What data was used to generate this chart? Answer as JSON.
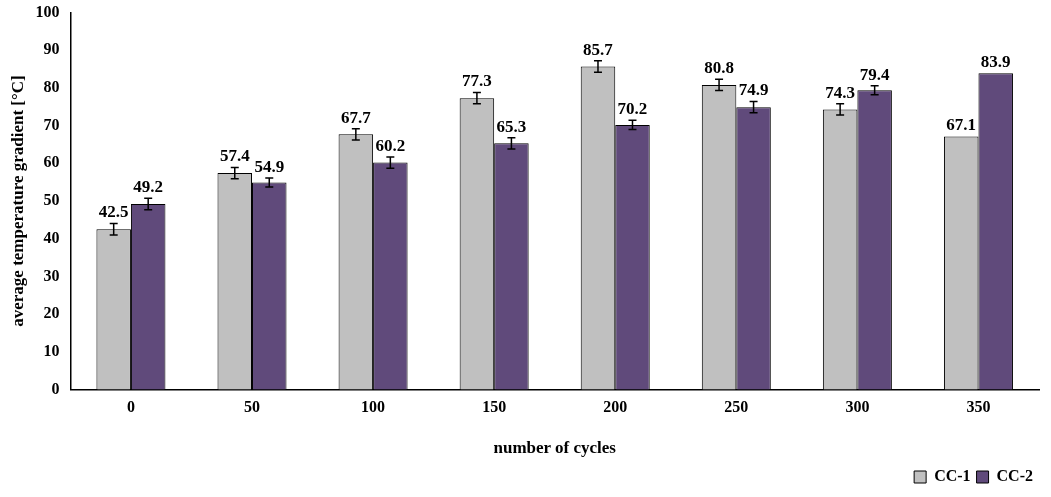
{
  "chart_data": {
    "type": "bar",
    "xlabel": "number of cycles",
    "ylabel": "average temperature gradient [°C]",
    "categories": [
      "0",
      "50",
      "100",
      "150",
      "200",
      "250",
      "300",
      "350"
    ],
    "series": [
      {
        "name": "CC-1",
        "color": "#c0c0c0",
        "values": [
          42.5,
          57.4,
          67.7,
          77.3,
          85.7,
          80.8,
          74.3,
          67.1
        ],
        "errors": [
          1.5,
          1.5,
          1.5,
          1.5,
          1.5,
          1.5,
          1.5,
          null
        ]
      },
      {
        "name": "CC-2",
        "color": "#604a7b",
        "values": [
          49.2,
          54.9,
          60.2,
          65.3,
          70.2,
          74.9,
          79.4,
          83.9
        ],
        "errors": [
          1.5,
          1.2,
          1.5,
          1.5,
          1.2,
          1.5,
          1.2,
          null
        ]
      }
    ],
    "ylim": [
      0,
      100
    ],
    "yticks": [
      0,
      10,
      20,
      30,
      40,
      50,
      60,
      70,
      80,
      90,
      100
    ],
    "data_labels": true,
    "grid": false,
    "legend": "bottom right"
  }
}
